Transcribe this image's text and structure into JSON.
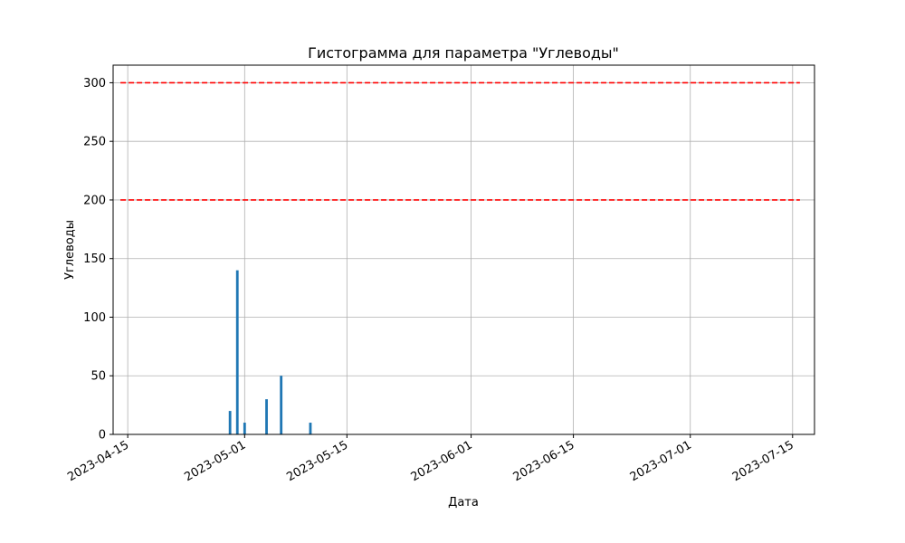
{
  "chart_data": {
    "type": "bar",
    "title": "Гистограмма для параметра \"Углеводы\"",
    "xlabel": "Дата",
    "ylabel": "Углеводы",
    "x_type": "date",
    "xlim": [
      "2023-04-13",
      "2023-07-18"
    ],
    "ylim": [
      0,
      315
    ],
    "grid": true,
    "x_ticks": [
      "2023-04-15",
      "2023-05-01",
      "2023-05-15",
      "2023-06-01",
      "2023-06-15",
      "2023-07-01",
      "2023-07-15"
    ],
    "y_ticks": [
      0,
      50,
      100,
      150,
      200,
      250,
      300
    ],
    "series": [
      {
        "color": "#1f77b4",
        "points": [
          {
            "x": "2023-04-29",
            "y": 20
          },
          {
            "x": "2023-04-30",
            "y": 140
          },
          {
            "x": "2023-05-01",
            "y": 10
          },
          {
            "x": "2023-05-04",
            "y": 30
          },
          {
            "x": "2023-05-06",
            "y": 50
          },
          {
            "x": "2023-05-10",
            "y": 10
          }
        ]
      }
    ],
    "reference_lines": [
      {
        "y": 300,
        "color": "#ff0000",
        "style": "dashed"
      },
      {
        "y": 200,
        "color": "#ff0000",
        "style": "dashed"
      }
    ],
    "reference_line_x_range": [
      "2023-04-14",
      "2023-07-16"
    ]
  }
}
